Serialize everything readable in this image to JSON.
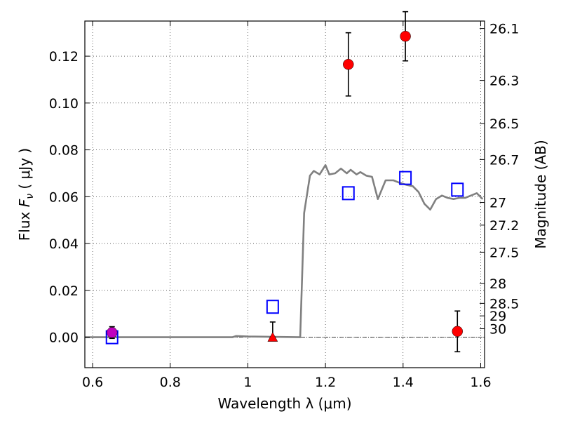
{
  "chart_data": {
    "type": "scatter",
    "xlabel": "Wavelength  λ (μm)",
    "ylabel": "Flux  F_ν  ( μJy )",
    "ylabel_parts": {
      "prefix": "Flux  ",
      "symbol": "F",
      "subscript": "ν",
      "suffix": "  ( μJy )"
    },
    "y2label": "Magnitude (AB)",
    "xlim": [
      0.58,
      1.61
    ],
    "ylim": [
      -0.013,
      0.135
    ],
    "grid": true,
    "x_ticks": [
      {
        "value": 0.6,
        "label": "0.6"
      },
      {
        "value": 0.8,
        "label": "0.8"
      },
      {
        "value": 1.0,
        "label": "1"
      },
      {
        "value": 1.2,
        "label": "1.2"
      },
      {
        "value": 1.4,
        "label": "1.4"
      },
      {
        "value": 1.6,
        "label": "1.6"
      }
    ],
    "y_ticks": [
      {
        "value": 0.0,
        "label": "0.00"
      },
      {
        "value": 0.02,
        "label": "0.02"
      },
      {
        "value": 0.04,
        "label": "0.04"
      },
      {
        "value": 0.06,
        "label": "0.06"
      },
      {
        "value": 0.08,
        "label": "0.08"
      },
      {
        "value": 0.1,
        "label": "0.10"
      },
      {
        "value": 0.12,
        "label": "0.12"
      }
    ],
    "y2_ticks": [
      {
        "magnitude": 26.1,
        "label": "26.1"
      },
      {
        "magnitude": 26.3,
        "label": "26.3"
      },
      {
        "magnitude": 26.5,
        "label": "26.5"
      },
      {
        "magnitude": 26.7,
        "label": "26.7"
      },
      {
        "magnitude": 27.0,
        "label": "27"
      },
      {
        "magnitude": 27.2,
        "label": "27.2"
      },
      {
        "magnitude": 27.5,
        "label": "27.5"
      },
      {
        "magnitude": 28.0,
        "label": "28"
      },
      {
        "magnitude": 28.5,
        "label": "28.5"
      },
      {
        "magnitude": 29.0,
        "label": "29"
      },
      {
        "magnitude": 30.0,
        "label": "30"
      }
    ],
    "model_sed": {
      "color": "#808080",
      "x": [
        0.58,
        0.96,
        0.97,
        1.0,
        1.135,
        1.145,
        1.16,
        1.17,
        1.185,
        1.2,
        1.21,
        1.225,
        1.24,
        1.255,
        1.265,
        1.28,
        1.29,
        1.305,
        1.32,
        1.335,
        1.355,
        1.375,
        1.39,
        1.41,
        1.425,
        1.44,
        1.455,
        1.47,
        1.485,
        1.5,
        1.515,
        1.53,
        1.545,
        1.56,
        1.575,
        1.59,
        1.605
      ],
      "y": [
        0.0,
        0.0,
        0.0005,
        0.0003,
        0.0,
        0.053,
        0.069,
        0.071,
        0.0695,
        0.0735,
        0.0695,
        0.07,
        0.072,
        0.07,
        0.0715,
        0.0695,
        0.0705,
        0.069,
        0.0685,
        0.059,
        0.067,
        0.067,
        0.066,
        0.065,
        0.0645,
        0.062,
        0.057,
        0.0545,
        0.059,
        0.0605,
        0.0595,
        0.059,
        0.0595,
        0.0595,
        0.0605,
        0.0615,
        0.059
      ]
    },
    "model_photometry": {
      "color": "#0000ff",
      "points": [
        {
          "x": 0.65,
          "y": 0.0
        },
        {
          "x": 1.064,
          "y": 0.013
        },
        {
          "x": 1.259,
          "y": 0.0615
        },
        {
          "x": 1.406,
          "y": 0.068
        },
        {
          "x": 1.54,
          "y": 0.063
        }
      ]
    },
    "detections": {
      "color": "#ff0000",
      "points": [
        {
          "x": 1.259,
          "y": 0.1165,
          "yerr": 0.0135
        },
        {
          "x": 1.406,
          "y": 0.1285,
          "yerr": 0.0105
        },
        {
          "x": 1.54,
          "y": 0.0025,
          "yerr": 0.0087
        }
      ]
    },
    "magenta_point": {
      "color": "#bf00bf",
      "x": 0.65,
      "y": 0.002,
      "yerr": 0.0025
    },
    "nondetection": {
      "color": "#ff0000",
      "x": 1.064,
      "y": 0.0,
      "yerr_upper": 0.0065
    }
  }
}
